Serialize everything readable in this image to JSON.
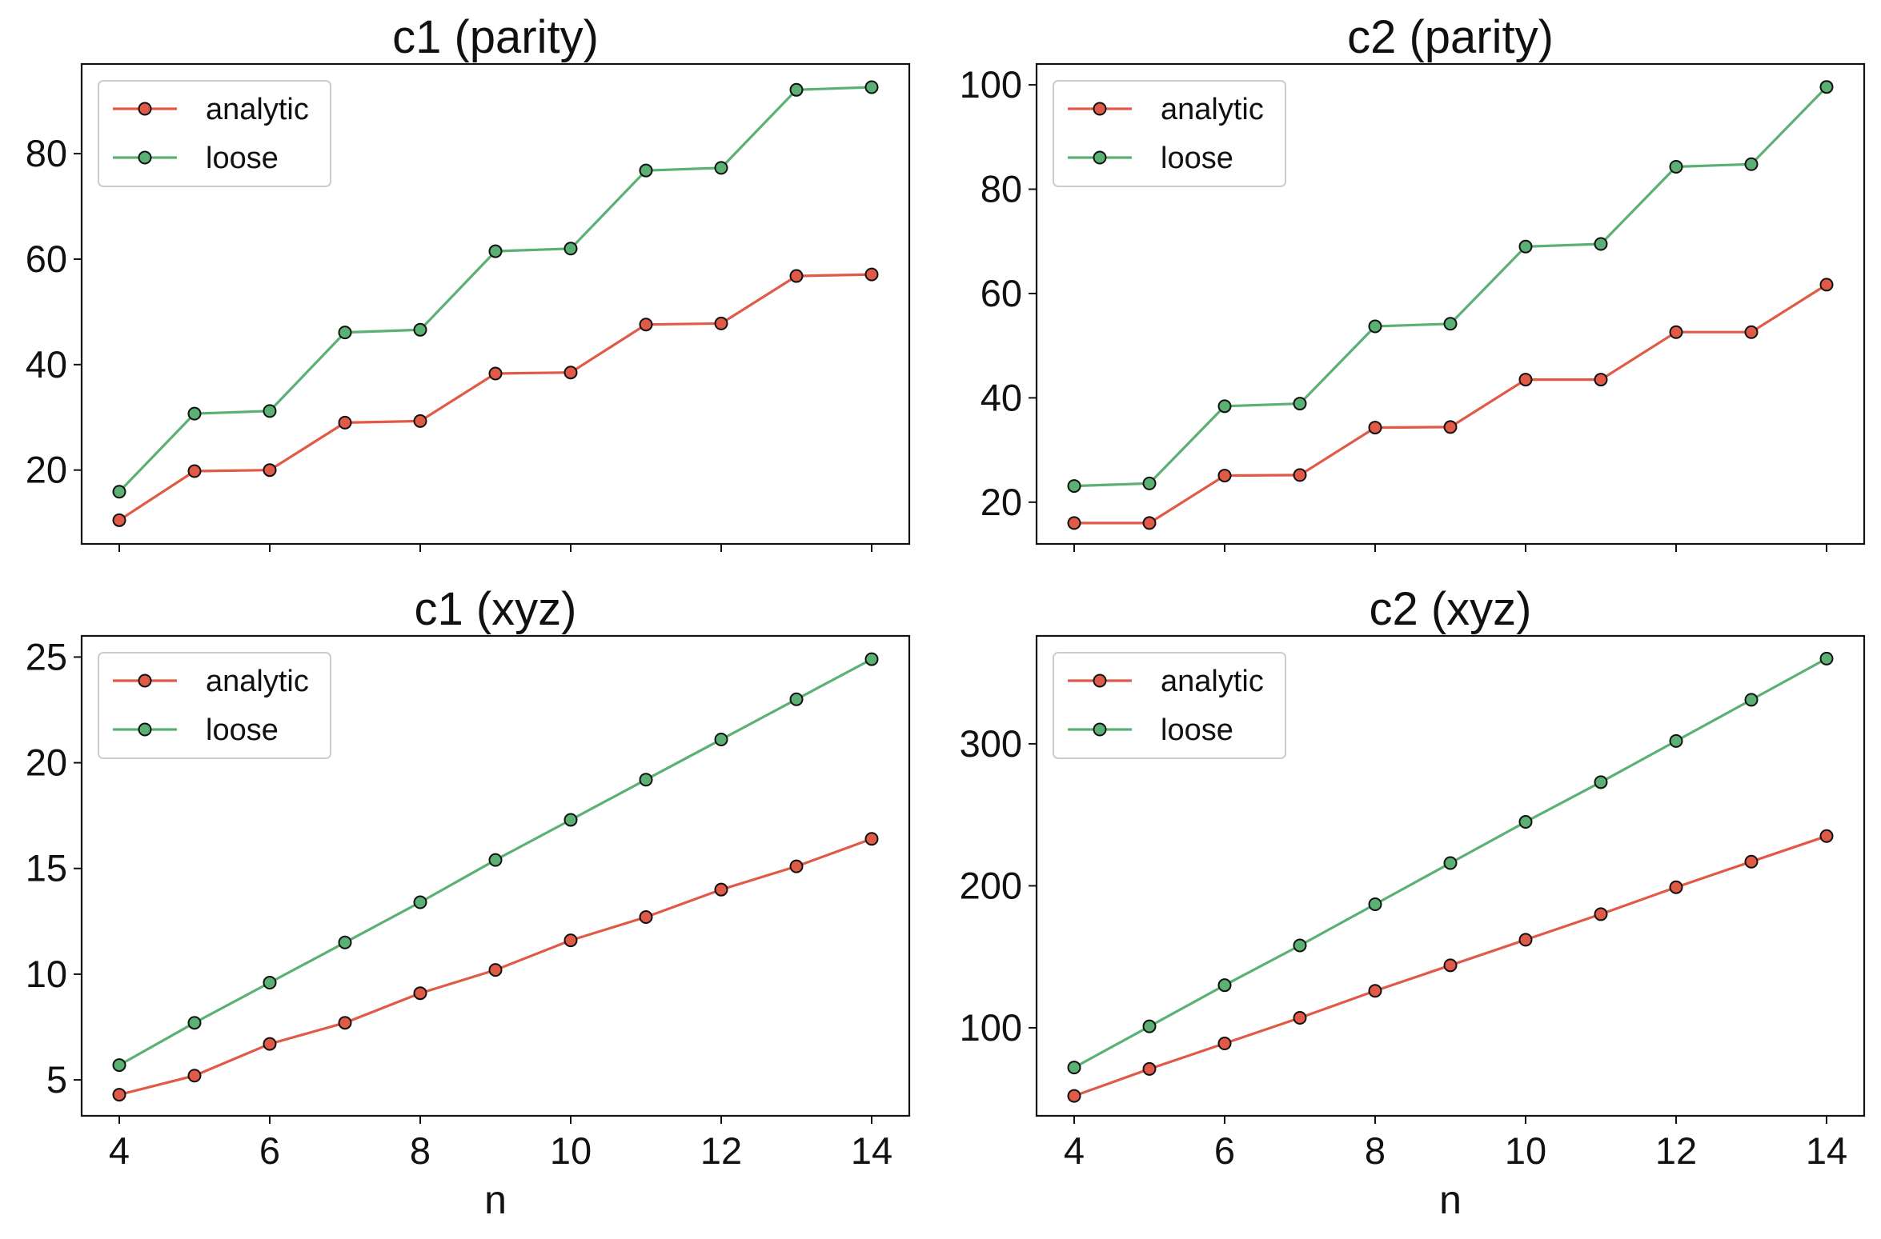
{
  "chart_data": [
    {
      "type": "line",
      "title": "c1 (parity)",
      "xlabel": "",
      "ylabel": "",
      "x": [
        4,
        5,
        6,
        7,
        8,
        9,
        10,
        11,
        12,
        13,
        14
      ],
      "xlim": [
        3.5,
        14.5
      ],
      "ylim": [
        6,
        97
      ],
      "xticks": [
        4,
        6,
        8,
        10,
        12,
        14
      ],
      "xticklabels_visible": false,
      "yticks": [
        20,
        40,
        60,
        80
      ],
      "grid": false,
      "legend": "top-left",
      "series": [
        {
          "name": "analytic",
          "color": "#e05a47",
          "values": [
            10.5,
            19.8,
            20.0,
            29.0,
            29.3,
            38.3,
            38.5,
            47.6,
            47.8,
            56.8,
            57.1
          ]
        },
        {
          "name": "loose",
          "color": "#5bb174",
          "values": [
            15.9,
            30.7,
            31.2,
            46.1,
            46.6,
            61.5,
            62.0,
            76.8,
            77.3,
            92.1,
            92.6
          ]
        }
      ]
    },
    {
      "type": "line",
      "title": "c2 (parity)",
      "xlabel": "",
      "ylabel": "",
      "x": [
        4,
        5,
        6,
        7,
        8,
        9,
        10,
        11,
        12,
        13,
        14
      ],
      "xlim": [
        3.5,
        14.5
      ],
      "ylim": [
        12,
        104
      ],
      "xticks": [
        4,
        6,
        8,
        10,
        12,
        14
      ],
      "xticklabels_visible": false,
      "yticks": [
        20,
        40,
        60,
        80,
        100
      ],
      "grid": false,
      "legend": "top-left",
      "series": [
        {
          "name": "analytic",
          "color": "#e05a47",
          "values": [
            16.0,
            16.0,
            25.1,
            25.2,
            34.3,
            34.4,
            43.5,
            43.5,
            52.6,
            52.6,
            61.7
          ]
        },
        {
          "name": "loose",
          "color": "#5bb174",
          "values": [
            23.1,
            23.6,
            38.4,
            38.9,
            53.7,
            54.2,
            69.0,
            69.5,
            84.3,
            84.8,
            99.6
          ]
        }
      ]
    },
    {
      "type": "line",
      "title": "c1 (xyz)",
      "xlabel": "n",
      "ylabel": "",
      "x": [
        4,
        5,
        6,
        7,
        8,
        9,
        10,
        11,
        12,
        13,
        14
      ],
      "xlim": [
        3.5,
        14.5
      ],
      "ylim": [
        3.3,
        26.0
      ],
      "xticks": [
        4,
        6,
        8,
        10,
        12,
        14
      ],
      "xticklabels_visible": true,
      "yticks": [
        5,
        10,
        15,
        20,
        25
      ],
      "grid": false,
      "legend": "top-left",
      "series": [
        {
          "name": "analytic",
          "color": "#e05a47",
          "values": [
            4.3,
            5.2,
            6.7,
            7.7,
            9.1,
            10.2,
            11.6,
            12.7,
            14.0,
            15.1,
            16.4
          ]
        },
        {
          "name": "loose",
          "color": "#5bb174",
          "values": [
            5.7,
            7.7,
            9.6,
            11.5,
            13.4,
            15.4,
            17.3,
            19.2,
            21.1,
            23.0,
            24.9
          ]
        }
      ]
    },
    {
      "type": "line",
      "title": "c2 (xyz)",
      "xlabel": "n",
      "ylabel": "",
      "x": [
        4,
        5,
        6,
        7,
        8,
        9,
        10,
        11,
        12,
        13,
        14
      ],
      "xlim": [
        3.5,
        14.5
      ],
      "ylim": [
        38,
        376
      ],
      "xticks": [
        4,
        6,
        8,
        10,
        12,
        14
      ],
      "xticklabels_visible": true,
      "yticks": [
        100,
        200,
        300
      ],
      "grid": false,
      "legend": "top-left",
      "series": [
        {
          "name": "analytic",
          "color": "#e05a47",
          "values": [
            52,
            71,
            89,
            107,
            126,
            144,
            162,
            180,
            199,
            217,
            235
          ]
        },
        {
          "name": "loose",
          "color": "#5bb174",
          "values": [
            72,
            101,
            130,
            158,
            187,
            216,
            245,
            273,
            302,
            331,
            360
          ]
        }
      ]
    }
  ]
}
